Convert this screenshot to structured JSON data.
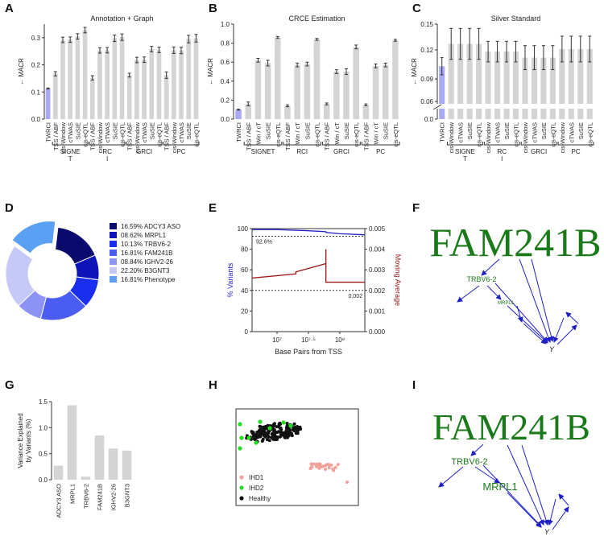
{
  "panel_labels": {
    "a": "A",
    "b": "B",
    "c": "C",
    "d": "D",
    "e": "E",
    "f": "F",
    "g": "G",
    "h": "H",
    "i": "I"
  },
  "colors": {
    "bar": "#d4d4d4",
    "highlight": "#a9a9f5",
    "blue": "#1f1fc8",
    "red": "#a01818",
    "green": "#1a7a1a",
    "bright_green": "#22dd22",
    "pink": "#f4a09a"
  },
  "chart_data": [
    {
      "id": "A",
      "type": "bar",
      "title": "Annotation + Graph",
      "ylabel": "← MACR",
      "ylim": [
        0,
        0.35
      ],
      "yticks": [
        "0.0",
        "0.1",
        "0.2",
        "0.3"
      ],
      "categories": [
        "TWRCI",
        "TSS / ABF",
        "cis-Window",
        "cTWAS",
        "SuSIE",
        "cis-eQTL",
        "TSS / ABF",
        "cis-Window",
        "cTWAS",
        "SuSIE",
        "cis-eQTL",
        "TSS / ABF",
        "cis-Window",
        "cTWAS",
        "SuSIE",
        "cis-eQTL",
        "TSS / ABF",
        "cis-Window",
        "cTWAS",
        "SuSIE",
        "cis-eQTL"
      ],
      "values": [
        0.113,
        0.167,
        0.292,
        0.293,
        0.305,
        0.328,
        0.152,
        0.253,
        0.254,
        0.298,
        0.302,
        0.162,
        0.218,
        0.219,
        0.258,
        0.255,
        0.162,
        0.254,
        0.253,
        0.295,
        0.298
      ],
      "errors": [
        0.002,
        0.008,
        0.01,
        0.01,
        0.01,
        0.01,
        0.008,
        0.01,
        0.01,
        0.012,
        0.012,
        0.007,
        0.01,
        0.01,
        0.01,
        0.01,
        0.012,
        0.012,
        0.012,
        0.014,
        0.014
      ],
      "groups": [
        "SIGNE\nT",
        "RC\nI",
        "GRCI",
        "PC"
      ]
    },
    {
      "id": "B",
      "type": "bar",
      "title": "CRCE Estimation",
      "ylabel": "← MACR",
      "ylim": [
        0,
        1.0
      ],
      "yticks": [
        "0.0",
        "0.2",
        "0.4",
        "0.6",
        "0.8",
        "1.0"
      ],
      "categories": [
        "TWRCI",
        "TSS / ABF",
        "Win / cT",
        "SuSIE",
        "cis-eQTL",
        "TSS / ABF",
        "Win / cT",
        "SuSIE",
        "cis-eQTL",
        "TSS / ABF",
        "Win / cT",
        "SuSIE",
        "cis-eQTL",
        "TSS / ABF",
        "Win / cT",
        "SuSIE",
        "cis-eQTL"
      ],
      "values": [
        0.1,
        0.16,
        0.62,
        0.59,
        0.86,
        0.14,
        0.57,
        0.58,
        0.84,
        0.16,
        0.5,
        0.5,
        0.76,
        0.15,
        0.56,
        0.57,
        0.83
      ],
      "errors": [
        0.005,
        0.02,
        0.02,
        0.03,
        0.01,
        0.01,
        0.02,
        0.02,
        0.01,
        0.01,
        0.02,
        0.03,
        0.02,
        0.01,
        0.02,
        0.02,
        0.01
      ],
      "groups": [
        "SIGNET",
        "RCI",
        "GRCI",
        "PC"
      ]
    },
    {
      "id": "C",
      "type": "bar",
      "title": "Silver Standard",
      "ylabel": "← MACR",
      "ylim": [
        0,
        0.15
      ],
      "yticks": [
        "0.0",
        "0.06",
        "0.09",
        "0.12",
        "0.15"
      ],
      "categories": [
        "TWRCI",
        "cis-Window",
        "cTWAS",
        "SuSIE",
        "cis-eQTL",
        "cis-Window",
        "cTWAS",
        "SuSIE",
        "cis-eQTL",
        "cis-Window",
        "cTWAS",
        "SuSIE",
        "cis-eQTL",
        "cis-Window",
        "cTWAS",
        "SuSIE",
        "cis-eQTL"
      ],
      "values": [
        0.101,
        0.127,
        0.127,
        0.127,
        0.127,
        0.118,
        0.118,
        0.118,
        0.118,
        0.111,
        0.111,
        0.111,
        0.111,
        0.121,
        0.121,
        0.121,
        0.121
      ],
      "errors": [
        0.01,
        0.018,
        0.018,
        0.018,
        0.018,
        0.012,
        0.012,
        0.012,
        0.012,
        0.014,
        0.014,
        0.014,
        0.014,
        0.015,
        0.015,
        0.015,
        0.015
      ],
      "groups": [
        "SIGNE\nT",
        "RC\nI",
        "GRCI",
        "PC"
      ]
    },
    {
      "id": "D",
      "type": "pie",
      "subtype": "donut",
      "entries": [
        {
          "label": "16.59% ADCY3 ASO",
          "value": 16.59,
          "color": "#0a0a6e"
        },
        {
          "label": "08.62% MRPL1",
          "value": 8.62,
          "color": "#0f14b8"
        },
        {
          "label": "10.13% TRBV6-2",
          "value": 10.13,
          "color": "#1a2ef0"
        },
        {
          "label": "16.81% FAM241B",
          "value": 16.81,
          "color": "#4b5cf2"
        },
        {
          "label": "08.84% IGHV2-26",
          "value": 8.84,
          "color": "#8d93f4"
        },
        {
          "label": "22.20% B3GNT3",
          "value": 22.2,
          "color": "#c6c9f7"
        },
        {
          "label": "16.81% Phenotype",
          "value": 16.81,
          "color": "#5aa0f2"
        }
      ]
    },
    {
      "id": "E",
      "type": "line",
      "xlabel": "Base Pairs from TSS",
      "ylabel": "% Variants",
      "y2label": "Moving Average",
      "xscale": "log",
      "xlim": [
        4000000,
        250000000
      ],
      "xticks": [
        "10⁷",
        "10⁷·⁵",
        "10⁸"
      ],
      "ylim": [
        0,
        100
      ],
      "yticks": [
        "0",
        "20",
        "40",
        "60",
        "80",
        "100"
      ],
      "y2lim": [
        0,
        0.005
      ],
      "y2ticks": [
        "0.000",
        "0.001",
        "0.002",
        "0.003",
        "0.004",
        "0.005"
      ],
      "annotations": [
        "92.6%",
        "0.002"
      ],
      "series": [
        {
          "axis": "left",
          "color": "#1f1fc8",
          "x": [
            4000000,
            10000000,
            30000000,
            60000000,
            60000000,
            100000000,
            250000000
          ],
          "y": [
            99,
            99,
            98,
            97,
            96.3,
            95,
            94
          ]
        },
        {
          "axis": "right",
          "color": "#a01818",
          "x": [
            4000000,
            20000000,
            20000000,
            60000000,
            60000000,
            250000000
          ],
          "y": [
            0.0026,
            0.0028,
            0.0029,
            0.0033,
            0.0024,
            0.0024
          ],
          "spike": [
            60000000,
            0.004
          ]
        }
      ],
      "hlines": [
        {
          "axis": "left",
          "y": 92.6
        },
        {
          "axis": "right",
          "y": 0.002
        }
      ]
    },
    {
      "id": "G",
      "type": "bar",
      "ylabel": "Variance Explained\nby Variants (%)",
      "ylim": [
        0,
        1.5
      ],
      "yticks": [
        "0.0",
        "0.5",
        "1.0",
        "1.5"
      ],
      "categories": [
        "ADCY3 ASO",
        "MRPL1",
        "TRBV6-2",
        "FAM241B",
        "IGHV2-26",
        "B3GNT3"
      ],
      "values": [
        0.27,
        1.43,
        0.06,
        0.85,
        0.6,
        0.56
      ]
    },
    {
      "id": "H",
      "type": "scatter",
      "legend": [
        {
          "label": "IHD1",
          "color": "#f4a09a"
        },
        {
          "label": "IHD2",
          "color": "#22dd22"
        },
        {
          "label": "Healthy",
          "color": "#111111"
        }
      ]
    }
  ],
  "graph_f": {
    "big": "FAM241B",
    "nodes": [
      "TRBV6-2",
      "MRPL1",
      "Y"
    ]
  },
  "graph_i": {
    "big": "FAM241B",
    "nodes": [
      "TRBV6-2",
      "MRPL1",
      "Y"
    ]
  }
}
